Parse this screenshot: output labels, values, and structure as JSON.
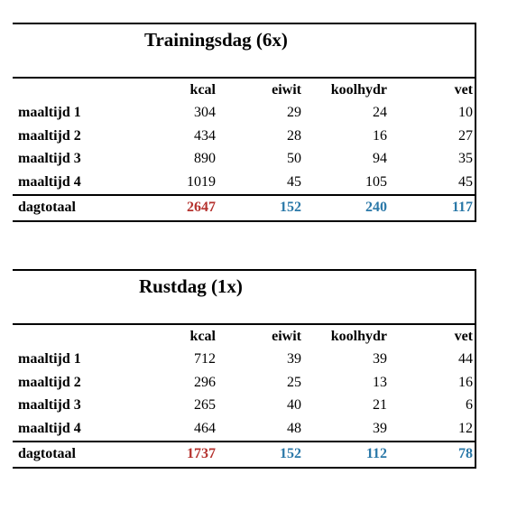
{
  "tables": [
    {
      "title": "Trainingsdag (6x)",
      "columns": [
        "",
        "kcal",
        "eiwit",
        "koolhydr",
        "vet"
      ],
      "rows": [
        {
          "label": "maaltijd 1",
          "kcal": "304",
          "eiwit": "29",
          "koolhydr": "24",
          "vet": "10"
        },
        {
          "label": "maaltijd 2",
          "kcal": "434",
          "eiwit": "28",
          "koolhydr": "16",
          "vet": "27"
        },
        {
          "label": "maaltijd 3",
          "kcal": "890",
          "eiwit": "50",
          "koolhydr": "94",
          "vet": "35"
        },
        {
          "label": "maaltijd 4",
          "kcal": "1019",
          "eiwit": "45",
          "koolhydr": "105",
          "vet": "45"
        }
      ],
      "total": {
        "label": "dagtotaal",
        "kcal": "2647",
        "eiwit": "152",
        "koolhydr": "240",
        "vet": "117"
      }
    },
    {
      "title": "Rustdag (1x)",
      "columns": [
        "",
        "kcal",
        "eiwit",
        "koolhydr",
        "vet"
      ],
      "rows": [
        {
          "label": "maaltijd 1",
          "kcal": "712",
          "eiwit": "39",
          "koolhydr": "39",
          "vet": "44"
        },
        {
          "label": "maaltijd 2",
          "kcal": "296",
          "eiwit": "25",
          "koolhydr": "13",
          "vet": "16"
        },
        {
          "label": "maaltijd 3",
          "kcal": "265",
          "eiwit": "40",
          "koolhydr": "21",
          "vet": "6"
        },
        {
          "label": "maaltijd 4",
          "kcal": "464",
          "eiwit": "48",
          "koolhydr": "39",
          "vet": "12"
        }
      ],
      "total": {
        "label": "dagtotaal",
        "kcal": "1737",
        "eiwit": "152",
        "koolhydr": "112",
        "vet": "78"
      }
    }
  ],
  "colors": {
    "total_kcal": "#b5322e",
    "total_macros": "#2a78a8"
  }
}
